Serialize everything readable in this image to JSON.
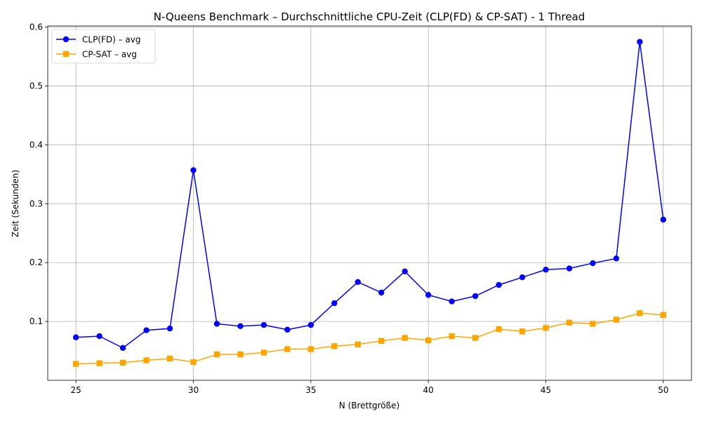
{
  "chart_data": {
    "type": "line",
    "title": "N-Queens Benchmark – Durchschnittliche CPU-Zeit (CLP(FD) & CP-SAT) - 1 Thread",
    "xlabel": "N (Brettgröße)",
    "ylabel": "Zeit (Sekunden)",
    "xlim": [
      23.8,
      51.2
    ],
    "ylim": [
      0.0,
      0.602
    ],
    "x_ticks": [
      25,
      30,
      35,
      40,
      45,
      50
    ],
    "y_ticks": [
      0.1,
      0.2,
      0.3,
      0.4,
      0.5,
      0.6
    ],
    "y_tick_labels": [
      "0.1",
      "0.2",
      "0.3",
      "0.4",
      "0.5",
      "0.6"
    ],
    "grid": true,
    "legend_position": "top-left",
    "x": [
      25,
      26,
      27,
      28,
      29,
      30,
      31,
      32,
      33,
      34,
      35,
      36,
      37,
      38,
      39,
      40,
      41,
      42,
      43,
      44,
      45,
      46,
      47,
      48,
      49,
      50
    ],
    "series": [
      {
        "name": "CLP(FD) – avg",
        "color": "#0000ff",
        "marker": "circle",
        "values": [
          0.073,
          0.075,
          0.055,
          0.085,
          0.088,
          0.357,
          0.096,
          0.092,
          0.094,
          0.086,
          0.094,
          0.131,
          0.167,
          0.149,
          0.185,
          0.145,
          0.134,
          0.143,
          0.162,
          0.175,
          0.188,
          0.19,
          0.199,
          0.207,
          0.575,
          0.273
        ]
      },
      {
        "name": "CP-SAT – avg",
        "color": "#ffa500",
        "marker": "square",
        "values": [
          0.028,
          0.029,
          0.03,
          0.034,
          0.037,
          0.031,
          0.044,
          0.044,
          0.047,
          0.053,
          0.053,
          0.058,
          0.061,
          0.067,
          0.072,
          0.068,
          0.075,
          0.072,
          0.087,
          0.083,
          0.089,
          0.098,
          0.096,
          0.103,
          0.114,
          0.111
        ]
      }
    ]
  }
}
